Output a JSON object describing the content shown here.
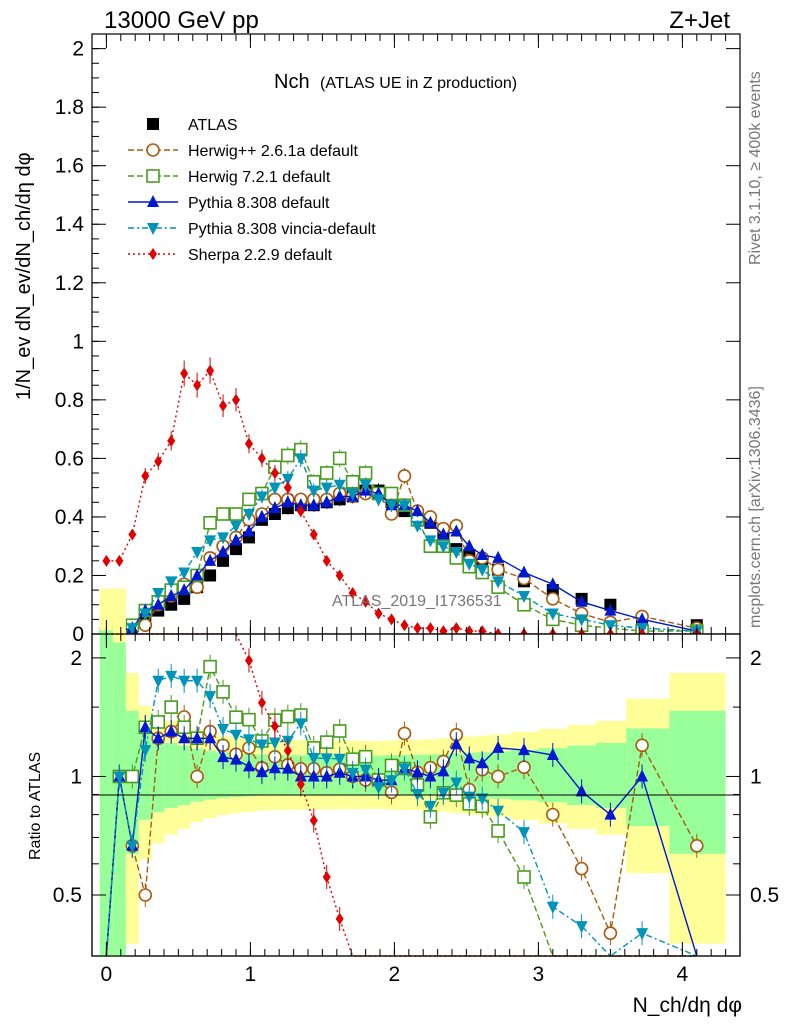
{
  "header": {
    "left": "13000 GeV pp",
    "right": "Z+Jet"
  },
  "side_labels": {
    "rivet": "Rivet 3.1.10, ≥ 400k events",
    "mcplots": "mcplots.cern.ch [arXiv:1306.3436]"
  },
  "watermark": "ATLAS_2019_I1736531",
  "chart_data": {
    "type": "line",
    "title_main": "Nch",
    "title_sub": "(ATLAS UE in Z production)",
    "xlabel": "N_ch/dη dφ",
    "ylabel_top": "1/N_ev dN_ev/dN_ch/dη dφ",
    "ylabel_ratio": "Ratio to ATLAS",
    "xlim": [
      -0.1,
      4.4
    ],
    "ylim": [
      0,
      2.05
    ],
    "ratio_ylim": [
      0.35,
      2.3
    ],
    "x_ticks": [
      "0",
      "1",
      "2",
      "3",
      "4"
    ],
    "y_ticks": [
      "0",
      "0.2",
      "0.4",
      "0.6",
      "0.8",
      "1",
      "1.2",
      "1.4",
      "1.6",
      "1.8",
      "2"
    ],
    "ratio_ticks": [
      "0.5",
      "1",
      "2"
    ],
    "x": [
      0.0,
      0.09,
      0.18,
      0.27,
      0.36,
      0.45,
      0.54,
      0.63,
      0.72,
      0.81,
      0.9,
      0.99,
      1.08,
      1.17,
      1.26,
      1.35,
      1.44,
      1.53,
      1.62,
      1.71,
      1.8,
      1.89,
      1.98,
      2.07,
      2.16,
      2.25,
      2.34,
      2.43,
      2.52,
      2.61,
      2.72,
      2.9,
      3.1,
      3.3,
      3.5,
      3.72,
      4.1
    ],
    "series": [
      {
        "name": "ATLAS",
        "color": "#000000",
        "values": [
          0.0,
          0.01,
          0.03,
          0.06,
          0.08,
          0.1,
          0.12,
          0.16,
          0.2,
          0.25,
          0.29,
          0.33,
          0.39,
          0.41,
          0.43,
          0.44,
          0.44,
          0.45,
          0.46,
          0.47,
          0.49,
          0.49,
          0.45,
          0.42,
          0.41,
          0.38,
          0.33,
          0.29,
          0.27,
          0.25,
          0.22,
          0.18,
          0.15,
          0.12,
          0.1,
          0.05,
          0.03
        ]
      },
      {
        "name": "Herwig++ 2.6.1a default",
        "color": "#a85a10",
        "values": [
          0.0,
          0.01,
          0.02,
          0.03,
          0.1,
          0.13,
          0.17,
          0.16,
          0.26,
          0.3,
          0.33,
          0.39,
          0.41,
          0.46,
          0.46,
          0.46,
          0.46,
          0.46,
          0.48,
          0.47,
          0.48,
          0.48,
          0.41,
          0.54,
          0.42,
          0.4,
          0.36,
          0.37,
          0.25,
          0.26,
          0.22,
          0.19,
          0.12,
          0.07,
          0.04,
          0.06,
          0.02
        ]
      },
      {
        "name": "Herwig 7.2.1 default",
        "color": "#4a9b20",
        "values": [
          0.0,
          0.01,
          0.03,
          0.08,
          0.11,
          0.15,
          0.16,
          0.2,
          0.38,
          0.41,
          0.41,
          0.46,
          0.48,
          0.57,
          0.61,
          0.63,
          0.52,
          0.55,
          0.6,
          0.52,
          0.55,
          0.48,
          0.48,
          0.44,
          0.39,
          0.3,
          0.3,
          0.26,
          0.23,
          0.21,
          0.16,
          0.1,
          0.05,
          0.03,
          0.02,
          0.01,
          0.01
        ]
      },
      {
        "name": "Pythia 8.308 default",
        "color": "#0018d0",
        "values": [
          0.0,
          0.01,
          0.02,
          0.08,
          0.1,
          0.13,
          0.15,
          0.2,
          0.25,
          0.28,
          0.32,
          0.35,
          0.4,
          0.43,
          0.45,
          0.44,
          0.44,
          0.45,
          0.47,
          0.47,
          0.49,
          0.48,
          0.44,
          0.44,
          0.42,
          0.38,
          0.34,
          0.35,
          0.3,
          0.27,
          0.26,
          0.21,
          0.17,
          0.11,
          0.08,
          0.05,
          0.01
        ]
      },
      {
        "name": "Pythia 8.308 vincia-default",
        "color": "#0094b8",
        "values": [
          0.0,
          0.01,
          0.02,
          0.07,
          0.14,
          0.18,
          0.21,
          0.28,
          0.32,
          0.33,
          0.37,
          0.41,
          0.47,
          0.5,
          0.53,
          0.6,
          0.49,
          0.5,
          0.51,
          0.48,
          0.51,
          0.46,
          0.44,
          0.44,
          0.37,
          0.32,
          0.3,
          0.28,
          0.24,
          0.22,
          0.18,
          0.13,
          0.07,
          0.05,
          0.03,
          0.02,
          0.01
        ]
      },
      {
        "name": "Sherpa 2.2.9 default",
        "color": "#e00000",
        "values": [
          0.25,
          0.25,
          0.34,
          0.54,
          0.59,
          0.66,
          0.89,
          0.85,
          0.9,
          0.78,
          0.8,
          0.65,
          0.6,
          0.55,
          0.5,
          0.42,
          0.34,
          0.25,
          0.2,
          0.14,
          0.11,
          0.07,
          0.05,
          0.03,
          0.02,
          0.02,
          0.01,
          0.02,
          0.01,
          0.01,
          0.0,
          0.0,
          0.0,
          0.0,
          0.0,
          0.0,
          0.0
        ]
      }
    ]
  }
}
